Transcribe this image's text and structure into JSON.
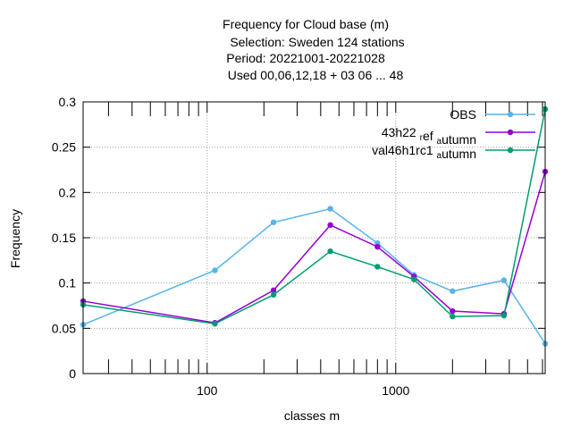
{
  "chart_data": {
    "type": "line",
    "title_lines": [
      "Frequency  for Cloud base (m)",
      "Selection: Sweden    124 stations",
      "Period: 20221001-20221028",
      "Used  00,06,12,18  + 03 06 ... 48"
    ],
    "xlabel": "classes m",
    "ylabel": "Frequency",
    "x_scale": "log",
    "xlim": [
      22,
      6200
    ],
    "ylim": [
      0,
      0.3
    ],
    "x_tick_labels": [
      "100",
      "1000"
    ],
    "y_tick_labels": [
      "0",
      "0.05",
      "0.1",
      "0.15",
      "0.2",
      "0.25",
      "0.3"
    ],
    "grid": true,
    "legend_position": "top-right",
    "x": [
      22,
      110,
      225,
      450,
      800,
      1250,
      2000,
      3750,
      6200
    ],
    "series": [
      {
        "name": "OBS",
        "legend_parts": [
          [
            "OBS",
            ""
          ]
        ],
        "color": "#56b4e9",
        "values": [
          0.054,
          0.114,
          0.167,
          0.182,
          0.144,
          0.109,
          0.091,
          0.103,
          0.033
        ]
      },
      {
        "name": "43h22_ref_autumn",
        "legend_parts": [
          [
            "43h22 ",
            ""
          ],
          [
            "",
            "r"
          ],
          [
            "ef ",
            ""
          ],
          [
            "",
            "a"
          ],
          [
            "utumn",
            ""
          ]
        ],
        "color": "#9400d3",
        "values": [
          0.08,
          0.056,
          0.092,
          0.164,
          0.14,
          0.107,
          0.069,
          0.066,
          0.223
        ]
      },
      {
        "name": "val46h1rc1_autumn",
        "legend_parts": [
          [
            "val46h1rc1 ",
            ""
          ],
          [
            "",
            "a"
          ],
          [
            "utumn",
            ""
          ]
        ],
        "color": "#009e73",
        "values": [
          0.076,
          0.055,
          0.087,
          0.135,
          0.118,
          0.104,
          0.063,
          0.064,
          0.292
        ]
      }
    ]
  }
}
